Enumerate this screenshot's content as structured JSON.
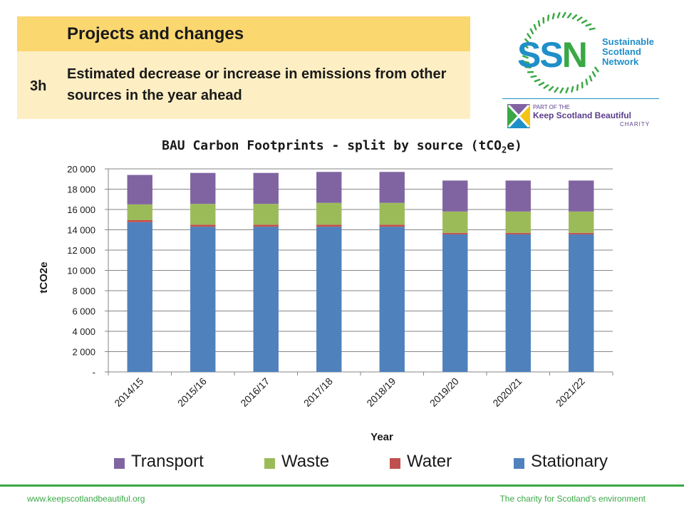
{
  "header": {
    "title": "Projects and changes",
    "code": "3h",
    "description": "Estimated decrease or increase in emissions from other sources in the year ahead"
  },
  "logo": {
    "ssn_letters": [
      "S",
      "S",
      "N"
    ],
    "ssn_name_lines": [
      "Sustainable",
      "Scotland",
      "Network"
    ],
    "ksb_line1": "PART OF THE",
    "ksb_line2": "Keep Scotland Beautiful",
    "ksb_line3": "CHARITY"
  },
  "chart_data": {
    "type": "bar",
    "stacked": true,
    "title_main": "BAU Carbon Footprints - split by source (tCO",
    "title_sub": "2",
    "title_end": "e)",
    "xlabel": "Year",
    "ylabel": "tCO2e",
    "ylim": [
      0,
      20000
    ],
    "yticks": [
      "-",
      "2 000",
      "4 000",
      "6 000",
      "8 000",
      "10 000",
      "12 000",
      "14 000",
      "16 000",
      "18 000",
      "20 000"
    ],
    "categories": [
      "2014/15",
      "2015/16",
      "2016/17",
      "2017/18",
      "2018/19",
      "2019/20",
      "2020/21",
      "2021/22"
    ],
    "series": [
      {
        "name": "Stationary",
        "color": "#4f81bd",
        "values": [
          14750,
          14300,
          14300,
          14300,
          14300,
          13550,
          13550,
          13550
        ]
      },
      {
        "name": "Water",
        "color": "#c0504d",
        "values": [
          200,
          200,
          200,
          200,
          200,
          150,
          150,
          150
        ]
      },
      {
        "name": "Waste",
        "color": "#9bbb59",
        "values": [
          1550,
          2050,
          2050,
          2150,
          2150,
          2100,
          2100,
          2100
        ]
      },
      {
        "name": "Transport",
        "color": "#8064a2",
        "values": [
          2900,
          3050,
          3050,
          3050,
          3050,
          3050,
          3050,
          3050
        ]
      }
    ],
    "legend_order": [
      "Transport",
      "Waste",
      "Water",
      "Stationary"
    ],
    "grid": true,
    "legend_position": "bottom"
  },
  "footer": {
    "left": "www.keepscotlandbeautiful.org",
    "right": "The charity for Scotland’s environment"
  },
  "colors": {
    "header_top": "#fbd770",
    "header_bottom": "#fdeec3",
    "footer_green": "#3aa845",
    "ssn_blue": "#1f8fc8"
  }
}
